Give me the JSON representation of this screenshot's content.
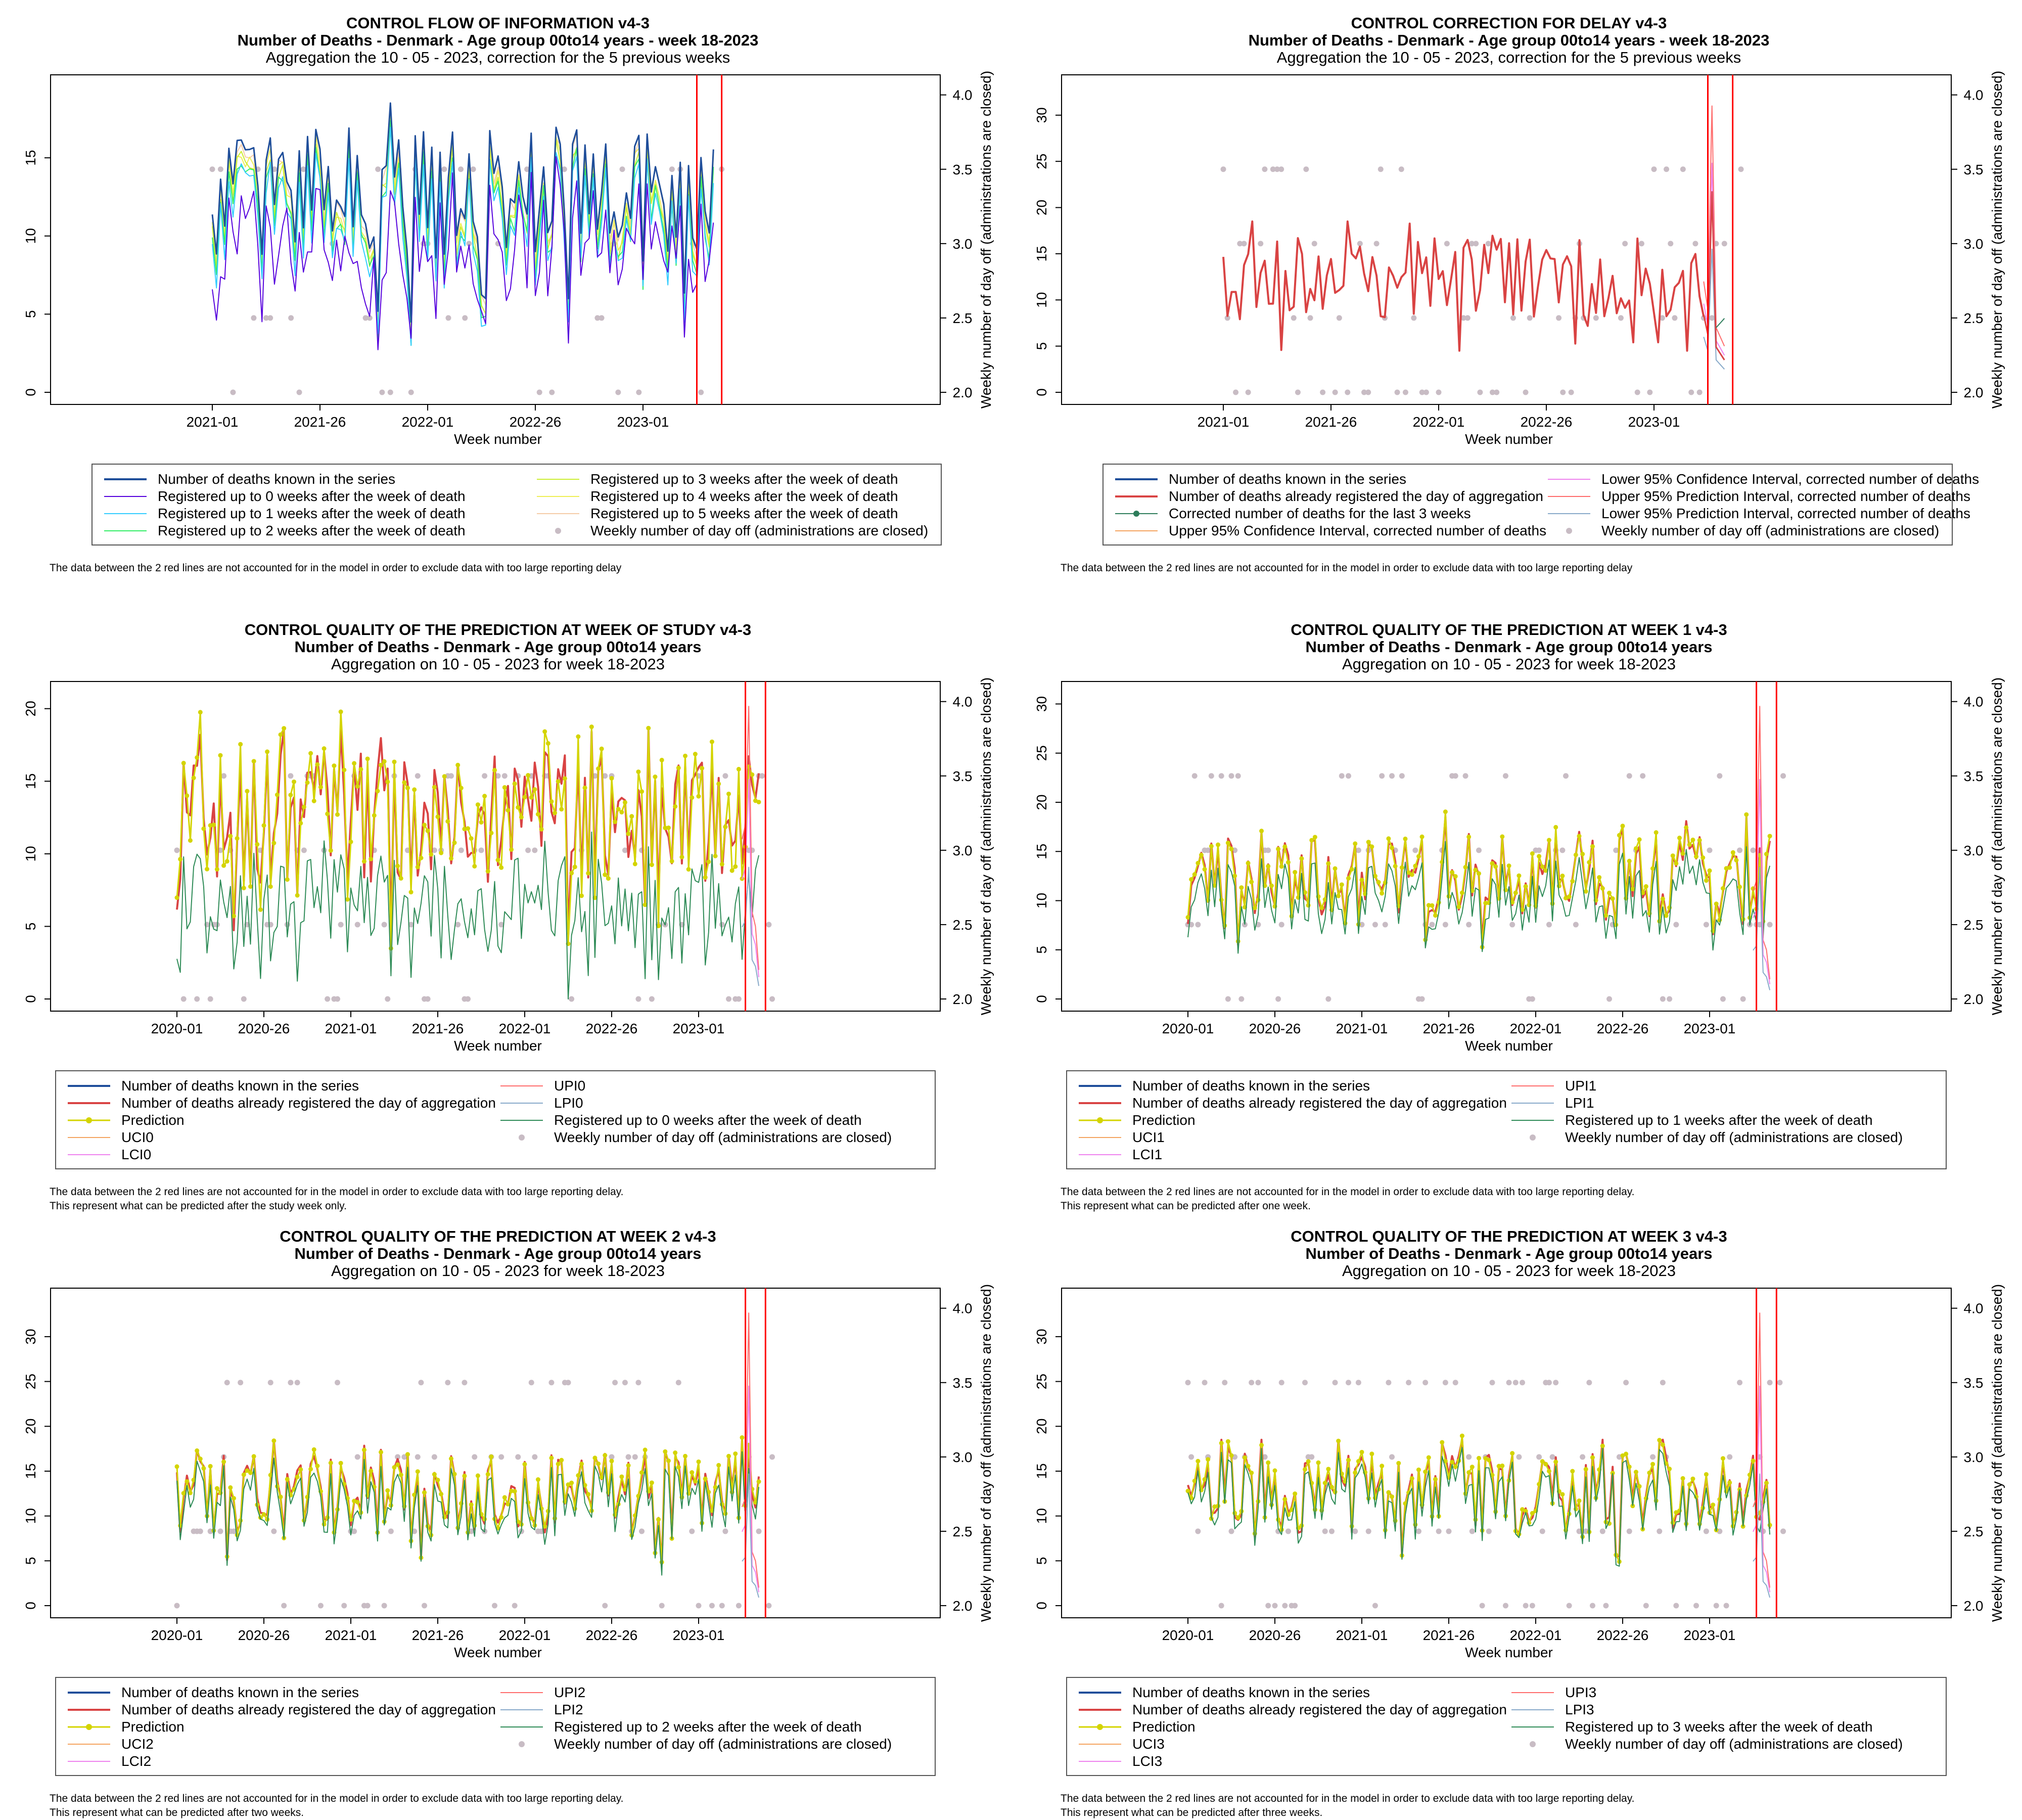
{
  "colors": {
    "known": "#1f4e9a",
    "registered": "#d94343",
    "prediction": "#d4d400",
    "uci": "#f4a460",
    "lci": "#ee82ee",
    "upi": "#ff6b6b",
    "lpi": "#87a9c9",
    "reg_green": "#2e8b57",
    "reg0_top": "#5500dd",
    "reg1_top": "#33ccff",
    "reg2_top": "#33ee66",
    "reg3_top": "#ccee33",
    "reg4_top": "#eeee55",
    "reg5_top": "#f5cba7",
    "corrected": "#2e7d5b",
    "dayoff": "#c8bcc4",
    "vline": "#ff0000",
    "axis": "#000000"
  },
  "secondary_axis_label": "Weekly number of day off (administrations are closed)",
  "xlabel": "Week number",
  "chart_data": [
    {
      "id": "flow",
      "type": "line",
      "title": [
        "CONTROL FLOW OF INFORMATION v4-3",
        "Number of Deaths - Denmark - Age group 00to14 years - week 18-2023",
        "Aggregation the 10 - 05 - 2023, correction for the 5 previous weeks"
      ],
      "xlabel": "Week number",
      "ylabel_right": "Weekly number of day off (administrations are closed)",
      "ylim": [
        0,
        19.5
      ],
      "yticks": [
        0,
        5,
        10,
        15
      ],
      "y2lim": [
        2.0,
        4.05
      ],
      "y2ticks": [
        "2.0",
        "2.5",
        "3.0",
        "3.5",
        "4.0"
      ],
      "xticks": [
        "2021-01",
        "2021-26",
        "2022-01",
        "2022-26",
        "2023-01"
      ],
      "series": [
        {
          "name": "Number of deaths known in the series",
          "color_key": "known",
          "lw": 3
        },
        {
          "name": "Registered up to 0 weeks after the week of death",
          "color_key": "reg0_top",
          "lw": 2
        },
        {
          "name": "Registered up to 1 weeks after the week of death",
          "color_key": "reg1_top",
          "lw": 2
        },
        {
          "name": "Registered up to 2 weeks after the week of death",
          "color_key": "reg2_top",
          "lw": 2
        },
        {
          "name": "Registered up to 3 weeks after the week of death",
          "color_key": "reg3_top",
          "lw": 2
        },
        {
          "name": "Registered up to 4 weeks after the week of death",
          "color_key": "reg4_top",
          "lw": 2
        },
        {
          "name": "Registered up to 5 weeks after the week of death",
          "color_key": "reg5_top",
          "lw": 2
        }
      ],
      "legend": {
        "left": [
          {
            "label": "Number of deaths known in the series",
            "color_key": "known",
            "kind": "line",
            "lw": 4
          },
          {
            "label": "Registered up to 0 weeks after the week of death",
            "color_key": "reg0_top",
            "kind": "line",
            "lw": 2
          },
          {
            "label": "Registered up to 1 weeks after the week of death",
            "color_key": "reg1_top",
            "kind": "line",
            "lw": 2
          },
          {
            "label": "Registered up to 2 weeks after the week of death",
            "color_key": "reg2_top",
            "kind": "line",
            "lw": 2
          }
        ],
        "right": [
          {
            "label": "Registered up to 3 weeks after the week of death",
            "color_key": "reg3_top",
            "kind": "line",
            "lw": 2
          },
          {
            "label": "Registered up to 4 weeks after the week of death",
            "color_key": "reg4_top",
            "kind": "line",
            "lw": 2
          },
          {
            "label": "Registered up to 5 weeks after the week of death",
            "color_key": "reg5_top",
            "kind": "line",
            "lw": 2
          },
          {
            "label": "Weekly number of day off (administrations are closed)",
            "color_key": "dayoff",
            "kind": "dot"
          }
        ]
      },
      "footnote": [
        "The data between the 2 red lines are not accounted for in the model in order to exclude data with too large reporting delay"
      ]
    },
    {
      "id": "delay",
      "type": "line",
      "title": [
        "CONTROL CORRECTION FOR DELAY v4-3",
        "Number of Deaths - Denmark - Age group 00to14 years - week 18-2023",
        "Aggregation the 10 - 05 - 2023, correction for the 5 previous weeks"
      ],
      "xlabel": "Week number",
      "ylabel_right": "Weekly number of day off (administrations are closed)",
      "ylim": [
        0,
        33
      ],
      "yticks": [
        0,
        5,
        10,
        15,
        20,
        25,
        30
      ],
      "y2lim": [
        2.0,
        4.05
      ],
      "y2ticks": [
        "2.0",
        "2.5",
        "3.0",
        "3.5",
        "4.0"
      ],
      "xticks": [
        "2021-01",
        "2021-26",
        "2022-01",
        "2022-26",
        "2023-01"
      ],
      "legend": {
        "left": [
          {
            "label": "Number of deaths known in the series",
            "color_key": "known",
            "kind": "line",
            "lw": 4
          },
          {
            "label": "Number of deaths already registered the day of aggregation",
            "color_key": "registered",
            "kind": "line",
            "lw": 4
          },
          {
            "label": "Corrected number of deaths for the last 3 weeks",
            "color_key": "corrected",
            "kind": "linedot",
            "lw": 2
          },
          {
            "label": "Upper 95% Confidence Interval, corrected number of deaths",
            "color_key": "uci",
            "kind": "line",
            "lw": 2
          }
        ],
        "right": [
          {
            "label": "Lower 95% Confidence Interval, corrected number of deaths",
            "color_key": "lci",
            "kind": "line",
            "lw": 2
          },
          {
            "label": "Upper 95% Prediction Interval, corrected number of deaths",
            "color_key": "upi",
            "kind": "line",
            "lw": 2
          },
          {
            "label": "Lower 95% Prediction Interval, corrected number of deaths",
            "color_key": "lpi",
            "kind": "line",
            "lw": 2
          },
          {
            "label": "Weekly number of day off (administrations are closed)",
            "color_key": "dayoff",
            "kind": "dot"
          }
        ]
      },
      "footnote": [
        "The data between the 2 red lines are not accounted for in the model in order to exclude data with too large reporting delay"
      ]
    },
    {
      "id": "q0",
      "type": "line",
      "title": [
        "CONTROL QUALITY OF THE PREDICTION AT WEEK OF STUDY v4-3",
        "Number of Deaths - Denmark - Age group 00to14 years",
        "Aggregation on 10 - 05 - 2023 for week 18-2023"
      ],
      "xlabel": "Week number",
      "ylabel_right": "Weekly number of day off (administrations are closed)",
      "ylim": [
        0,
        21
      ],
      "yticks": [
        0,
        5,
        10,
        15,
        20
      ],
      "y2lim": [
        2.0,
        4.05
      ],
      "y2ticks": [
        "2.0",
        "2.5",
        "3.0",
        "3.5",
        "4.0"
      ],
      "xticks": [
        "2020-01",
        "2020-26",
        "2021-01",
        "2021-26",
        "2022-01",
        "2022-26",
        "2023-01"
      ],
      "legend": {
        "left": [
          {
            "label": "Number of deaths known in the series",
            "color_key": "known",
            "kind": "line",
            "lw": 4
          },
          {
            "label": "Number of deaths already registered the day of aggregation",
            "color_key": "registered",
            "kind": "line",
            "lw": 4
          },
          {
            "label": "Prediction",
            "color_key": "prediction",
            "kind": "linedot",
            "lw": 3
          },
          {
            "label": "UCI0",
            "color_key": "uci",
            "kind": "line",
            "lw": 2
          },
          {
            "label": "LCI0",
            "color_key": "lci",
            "kind": "line",
            "lw": 2
          }
        ],
        "right": [
          {
            "label": "UPI0",
            "color_key": "upi",
            "kind": "line",
            "lw": 2
          },
          {
            "label": "LPI0",
            "color_key": "lpi",
            "kind": "line",
            "lw": 2
          },
          {
            "label": "Registered up to 0 weeks after the week of death",
            "color_key": "reg_green",
            "kind": "line",
            "lw": 2
          },
          {
            "label": "Weekly number of day off (administrations are closed)",
            "color_key": "dayoff",
            "kind": "dot"
          }
        ]
      },
      "footnote": [
        "The data between the 2 red lines are not accounted for in the model in order to exclude data with too large reporting delay.",
        "This represent what can be predicted after the study week only."
      ]
    },
    {
      "id": "q1",
      "type": "line",
      "title": [
        "CONTROL QUALITY OF THE PREDICTION AT WEEK 1 v4-3",
        "Number of Deaths - Denmark - Age group 00to14 years",
        "Aggregation on 10 - 05 - 2023 for week 18-2023"
      ],
      "xlabel": "Week number",
      "ylabel_right": "Weekly number of day off (administrations are closed)",
      "ylim": [
        0,
        31
      ],
      "yticks": [
        0,
        5,
        10,
        15,
        20,
        25,
        30
      ],
      "y2lim": [
        2.0,
        4.05
      ],
      "y2ticks": [
        "2.0",
        "2.5",
        "3.0",
        "3.5",
        "4.0"
      ],
      "xticks": [
        "2020-01",
        "2020-26",
        "2021-01",
        "2021-26",
        "2022-01",
        "2022-26",
        "2023-01"
      ],
      "legend": {
        "left": [
          {
            "label": "Number of deaths known in the series",
            "color_key": "known",
            "kind": "line",
            "lw": 4
          },
          {
            "label": "Number of deaths already registered the day of aggregation",
            "color_key": "registered",
            "kind": "line",
            "lw": 4
          },
          {
            "label": "Prediction",
            "color_key": "prediction",
            "kind": "linedot",
            "lw": 3
          },
          {
            "label": "UCI1",
            "color_key": "uci",
            "kind": "line",
            "lw": 2
          },
          {
            "label": "LCI1",
            "color_key": "lci",
            "kind": "line",
            "lw": 2
          }
        ],
        "right": [
          {
            "label": "UPI1",
            "color_key": "upi",
            "kind": "line",
            "lw": 2
          },
          {
            "label": "LPI1",
            "color_key": "lpi",
            "kind": "line",
            "lw": 2
          },
          {
            "label": "Registered up to 1 weeks after the week of death",
            "color_key": "reg_green",
            "kind": "line",
            "lw": 2
          },
          {
            "label": "Weekly number of day off (administrations are closed)",
            "color_key": "dayoff",
            "kind": "dot"
          }
        ]
      },
      "footnote": [
        "The data between the 2 red lines are not accounted for in the model in order to exclude data with too large reporting delay.",
        "This represent what can be predicted after one week."
      ]
    },
    {
      "id": "q2",
      "type": "line",
      "title": [
        "CONTROL QUALITY OF THE PREDICTION AT WEEK 2 v4-3",
        "Number of Deaths - Denmark - Age group 00to14 years",
        "Aggregation on 10 - 05 - 2023 for week 18-2023"
      ],
      "xlabel": "Week number",
      "ylabel_right": "Weekly number of day off (administrations are closed)",
      "ylim": [
        0,
        34
      ],
      "yticks": [
        0,
        5,
        10,
        15,
        20,
        25,
        30
      ],
      "y2lim": [
        2.0,
        4.05
      ],
      "y2ticks": [
        "2.0",
        "2.5",
        "3.0",
        "3.5",
        "4.0"
      ],
      "xticks": [
        "2020-01",
        "2020-26",
        "2021-01",
        "2021-26",
        "2022-01",
        "2022-26",
        "2023-01"
      ],
      "legend": {
        "left": [
          {
            "label": "Number of deaths known in the series",
            "color_key": "known",
            "kind": "line",
            "lw": 4
          },
          {
            "label": "Number of deaths already registered the day of aggregation",
            "color_key": "registered",
            "kind": "line",
            "lw": 4
          },
          {
            "label": "Prediction",
            "color_key": "prediction",
            "kind": "linedot",
            "lw": 3
          },
          {
            "label": "UCI2",
            "color_key": "uci",
            "kind": "line",
            "lw": 2
          },
          {
            "label": "LCI2",
            "color_key": "lci",
            "kind": "line",
            "lw": 2
          }
        ],
        "right": [
          {
            "label": "UPI2",
            "color_key": "upi",
            "kind": "line",
            "lw": 2
          },
          {
            "label": "LPI2",
            "color_key": "lpi",
            "kind": "line",
            "lw": 2
          },
          {
            "label": "Registered up to 2 weeks after the week of death",
            "color_key": "reg_green",
            "kind": "line",
            "lw": 2
          },
          {
            "label": "Weekly number of day off (administrations are closed)",
            "color_key": "dayoff",
            "kind": "dot"
          }
        ]
      },
      "footnote": [
        "The data between the 2 red lines are not accounted for in the model in order to exclude data with too large reporting delay.",
        "This represent what can be predicted after two weeks."
      ]
    },
    {
      "id": "q3",
      "type": "line",
      "title": [
        "CONTROL QUALITY OF THE PREDICTION AT WEEK 3 v4-3",
        "Number of Deaths - Denmark - Age group 00to14 years",
        "Aggregation on 10 - 05 - 2023 for week 18-2023"
      ],
      "xlabel": "Week number",
      "ylabel_right": "Weekly number of day off (administrations are closed)",
      "ylim": [
        0,
        34
      ],
      "yticks": [
        0,
        5,
        10,
        15,
        20,
        25,
        30
      ],
      "y2lim": [
        2.0,
        4.05
      ],
      "y2ticks": [
        "2.0",
        "2.5",
        "3.0",
        "3.5",
        "4.0"
      ],
      "xticks": [
        "2020-01",
        "2020-26",
        "2021-01",
        "2021-26",
        "2022-01",
        "2022-26",
        "2023-01"
      ],
      "legend": {
        "left": [
          {
            "label": "Number of deaths known in the series",
            "color_key": "known",
            "kind": "line",
            "lw": 4
          },
          {
            "label": "Number of deaths already registered the day of aggregation",
            "color_key": "registered",
            "kind": "line",
            "lw": 4
          },
          {
            "label": "Prediction",
            "color_key": "prediction",
            "kind": "linedot",
            "lw": 3
          },
          {
            "label": "UCI3",
            "color_key": "uci",
            "kind": "line",
            "lw": 2
          },
          {
            "label": "LCI3",
            "color_key": "lci",
            "kind": "line",
            "lw": 2
          }
        ],
        "right": [
          {
            "label": "UPI3",
            "color_key": "upi",
            "kind": "line",
            "lw": 2
          },
          {
            "label": "LPI3",
            "color_key": "lpi",
            "kind": "line",
            "lw": 2
          },
          {
            "label": "Registered up to 3 weeks after the week of death",
            "color_key": "reg_green",
            "kind": "line",
            "lw": 2
          },
          {
            "label": "Weekly number of day off (administrations are closed)",
            "color_key": "dayoff",
            "kind": "dot"
          }
        ]
      },
      "footnote": [
        "The data between the 2 red lines are not accounted for in the model in order to exclude data with too large reporting delay.",
        "This represent what can be predicted after three weeks."
      ]
    }
  ]
}
